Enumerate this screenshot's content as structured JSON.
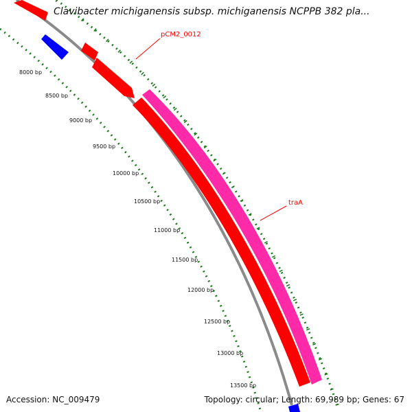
{
  "title": "Clavibacter michiganensis subsp. michiganensis NCPPB 382 pla...",
  "footer": {
    "accession": "Accession: NC_009479",
    "summary": "Topology: circular; Length: 69,989 bp; Genes: 67"
  },
  "colors": {
    "backbone": "#8a8a8a",
    "forward_gene": "#ff0000",
    "reverse_gene": "#0000ff",
    "feature": "#ff2aa8",
    "tick": "#1a7a1a",
    "callout": "#ff0000"
  },
  "scale_labels": [
    "8000 bp",
    "8500 bp",
    "9000 bp",
    "9500 bp",
    "10000 bp",
    "10500 bp",
    "11000 bp",
    "11500 bp",
    "12000 bp",
    "12500 bp",
    "13000 bp",
    "13500 bp"
  ],
  "gene_labels": {
    "pcm2": "pCM2_0012",
    "traa": "traA"
  }
}
